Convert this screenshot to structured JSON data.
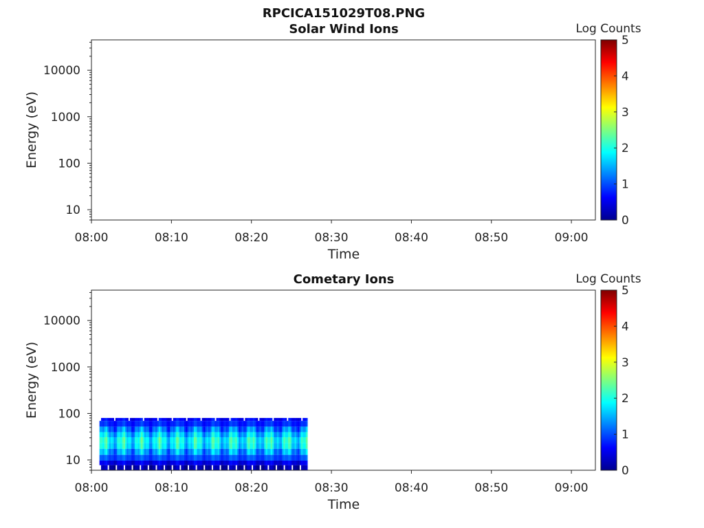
{
  "figure": {
    "title": "RPCICA151029T08.PNG"
  },
  "chart_data": [
    {
      "type": "heatmap",
      "title": "Solar Wind Ions",
      "xlabel": "Time",
      "ylabel": "Energy (eV)",
      "x_ticks": [
        "08:00",
        "08:10",
        "08:20",
        "08:30",
        "08:40",
        "08:50",
        "09:00"
      ],
      "y_ticks": [
        "10",
        "100",
        "1000",
        "10000"
      ],
      "y_scale": "log",
      "ylim": [
        6,
        45000
      ],
      "xlim": [
        "08:00",
        "09:03"
      ],
      "colorbar": {
        "label": "Log Counts",
        "ticks": [
          "0",
          "1",
          "2",
          "3",
          "4",
          "5"
        ],
        "range": [
          0,
          5
        ],
        "colormap": "jet"
      },
      "data": []
    },
    {
      "type": "heatmap",
      "title": "Cometary Ions",
      "xlabel": "Time",
      "ylabel": "Energy (eV)",
      "x_ticks": [
        "08:00",
        "08:10",
        "08:20",
        "08:30",
        "08:40",
        "08:50",
        "09:00"
      ],
      "y_ticks": [
        "10",
        "100",
        "1000",
        "10000"
      ],
      "y_scale": "log",
      "ylim": [
        6,
        45000
      ],
      "xlim": [
        "08:00",
        "09:03"
      ],
      "colorbar": {
        "label": "Log Counts",
        "ticks": [
          "0",
          "1",
          "2",
          "3",
          "4",
          "5"
        ],
        "range": [
          0,
          5
        ],
        "colormap": "jet"
      },
      "data_extent": {
        "time_start": "08:01",
        "time_end": "08:27",
        "energy_min_eV": 6,
        "energy_max_eV": 80
      },
      "energy_profile": [
        {
          "energy_eV": 80,
          "log_counts": 0.6
        },
        {
          "energy_eV": 60,
          "log_counts": 0.8
        },
        {
          "energy_eV": 45,
          "log_counts": 1.2
        },
        {
          "energy_eV": 35,
          "log_counts": 1.6
        },
        {
          "energy_eV": 27,
          "log_counts": 1.9
        },
        {
          "energy_eV": 20,
          "log_counts": 1.8
        },
        {
          "energy_eV": 15,
          "log_counts": 1.4
        },
        {
          "energy_eV": 11,
          "log_counts": 1.0
        },
        {
          "energy_eV": 8.5,
          "log_counts": 0.5
        },
        {
          "energy_eV": 7,
          "log_counts": 0.2
        }
      ]
    }
  ]
}
